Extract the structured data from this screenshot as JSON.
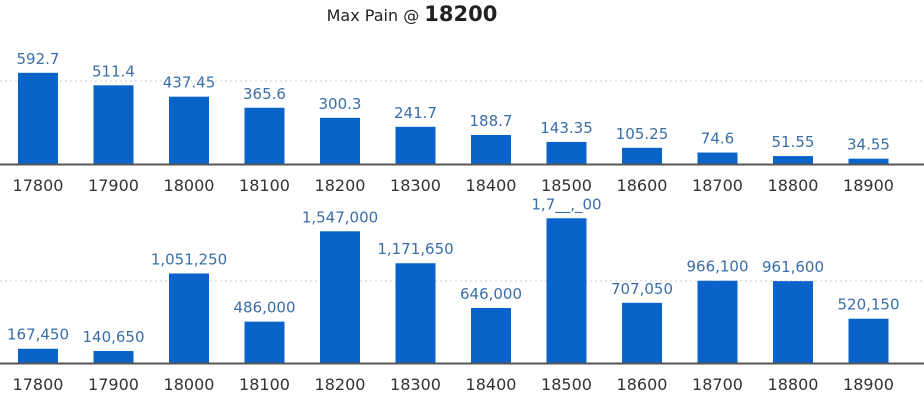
{
  "title": {
    "prefix": "Max Pain @",
    "strike": "18200"
  },
  "colors": {
    "bar": "#0a63c9",
    "axis": "#555555",
    "grid": "#cccccc",
    "value_label": "#3b6ea8",
    "tick_label": "#333333"
  },
  "chart_data": [
    {
      "type": "bar",
      "categories": [
        "17800",
        "17900",
        "18000",
        "18100",
        "18200",
        "18300",
        "18400",
        "18500",
        "18600",
        "18700",
        "18800",
        "18900"
      ],
      "values": [
        592.7,
        511.4,
        437.45,
        365.6,
        300.3,
        241.7,
        188.7,
        143.35,
        105.25,
        74.6,
        51.55,
        34.55
      ],
      "labels": [
        "592.7",
        "511.4",
        "437.45",
        "365.6",
        "300.3",
        "241.7",
        "188.7",
        "143.35",
        "105.25",
        "74.6",
        "51.55",
        "34.55"
      ],
      "ylim": [
        0,
        650
      ],
      "grid": true
    },
    {
      "type": "bar",
      "categories": [
        "17800",
        "17900",
        "18000",
        "18100",
        "18200",
        "18300",
        "18400",
        "18500",
        "18600",
        "18700",
        "18800",
        "18900"
      ],
      "values": [
        167450,
        140650,
        1051250,
        486000,
        1547000,
        1171650,
        646000,
        1700000,
        707050,
        966100,
        961600,
        520150
      ],
      "labels": [
        "167,450",
        "140,650",
        "1,051,250",
        "486,000",
        "1,547,000",
        "1,171,650",
        "646,000",
        "1,7__,_00",
        "707,050",
        "966,100",
        "961,600",
        "520,150"
      ],
      "ylim": [
        0,
        1750000
      ],
      "grid": true
    }
  ]
}
